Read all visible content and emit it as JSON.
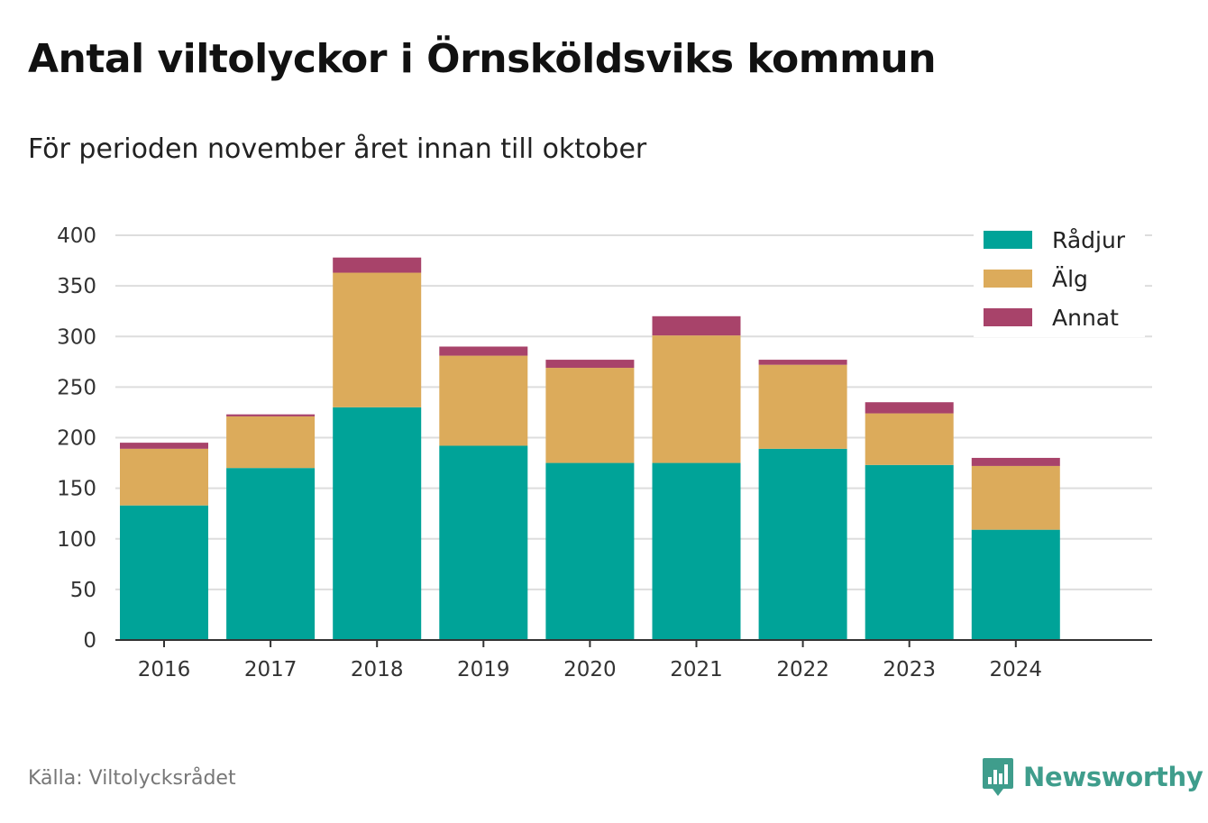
{
  "title": "Antal viltolyckor i Örnsköldsviks kommun",
  "subtitle": "För perioden november året innan till oktober",
  "source": "Källa: Viltolycksrådet",
  "brand": {
    "name": "Newsworthy",
    "icon": "newsworthy-logo-icon",
    "color": "#3f9d8c"
  },
  "chart_data": {
    "type": "bar",
    "stacked": true,
    "categories": [
      "2016",
      "2017",
      "2018",
      "2019",
      "2020",
      "2021",
      "2022",
      "2023",
      "2024"
    ],
    "series": [
      {
        "name": "Rådjur",
        "color": "#00a398",
        "values": [
          133,
          170,
          230,
          192,
          175,
          175,
          189,
          173,
          109
        ]
      },
      {
        "name": "Älg",
        "color": "#dcab5b",
        "values": [
          56,
          51,
          133,
          89,
          94,
          126,
          83,
          51,
          63
        ]
      },
      {
        "name": "Annat",
        "color": "#a8436a",
        "values": [
          6,
          2,
          15,
          9,
          8,
          19,
          5,
          11,
          8
        ]
      }
    ],
    "ylim": [
      0,
      400
    ],
    "yticks": [
      0,
      50,
      100,
      150,
      200,
      250,
      300,
      350,
      400
    ],
    "xlabel": "",
    "ylabel": "",
    "grid": true,
    "legend_position": "top-right"
  }
}
